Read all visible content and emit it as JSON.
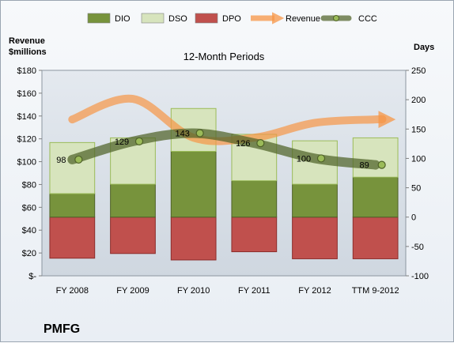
{
  "chart_data": {
    "type": "bar",
    "title": "12-Month Periods",
    "ylabel_left": "Revenue $millions",
    "ylabel_left_lines": [
      "Revenue",
      "$millions"
    ],
    "ylabel_right": "Days",
    "footer_label": "PMFG",
    "categories": [
      "FY 2008",
      "FY 2009",
      "FY 2010",
      "FY 2011",
      "FY 2012",
      "TTM 9-2012"
    ],
    "left_axis": {
      "min": 0,
      "max": 180,
      "ticks": [
        0,
        20,
        40,
        60,
        80,
        100,
        120,
        140,
        160,
        180
      ],
      "tick_labels": [
        "$-",
        "$20",
        "$40",
        "$60",
        "$80",
        "$100",
        "$120",
        "$140",
        "$160",
        "$180"
      ]
    },
    "right_axis": {
      "min": -100,
      "max": 250,
      "ticks": [
        -100,
        -50,
        0,
        50,
        100,
        150,
        200,
        250
      ],
      "tick_labels": [
        "-100",
        "-50",
        "0",
        "50",
        "100",
        "150",
        "200",
        "250"
      ]
    },
    "legend_position": "top",
    "legend": [
      {
        "name": "DIO",
        "kind": "bar",
        "color": "#77933c"
      },
      {
        "name": "DSO",
        "kind": "bar",
        "color": "#d7e4bd"
      },
      {
        "name": "DPO",
        "kind": "bar",
        "color": "#c0504d"
      },
      {
        "name": "Revenue",
        "kind": "arrow",
        "color": "#f79646"
      },
      {
        "name": "CCC",
        "kind": "line-marker",
        "color": "#4f6228"
      }
    ],
    "series": [
      {
        "name": "DPO",
        "axis": "right",
        "kind": "stacked-bar-negative",
        "color": "#c0504d",
        "values": [
          -70,
          -62,
          -73,
          -59,
          -71,
          -71
        ]
      },
      {
        "name": "DIO",
        "axis": "right",
        "kind": "stacked-bar",
        "color": "#77933c",
        "values": [
          40,
          56,
          112,
          62,
          56,
          68
        ]
      },
      {
        "name": "DSO",
        "axis": "right",
        "kind": "stacked-bar",
        "color": "#d7e4bd",
        "values": [
          87,
          79,
          73,
          79,
          74,
          67
        ]
      },
      {
        "name": "Revenue",
        "axis": "left",
        "kind": "arrow-curve",
        "color": "#f79646",
        "values": [
          137,
          155,
          121,
          121,
          134,
          137
        ]
      },
      {
        "name": "CCC",
        "axis": "right",
        "kind": "line",
        "color": "#4f6228",
        "values": [
          98,
          129,
          143,
          126,
          100,
          89
        ],
        "labels": [
          "98",
          "129",
          "143",
          "126",
          "100",
          "89"
        ]
      }
    ],
    "grid": false
  }
}
